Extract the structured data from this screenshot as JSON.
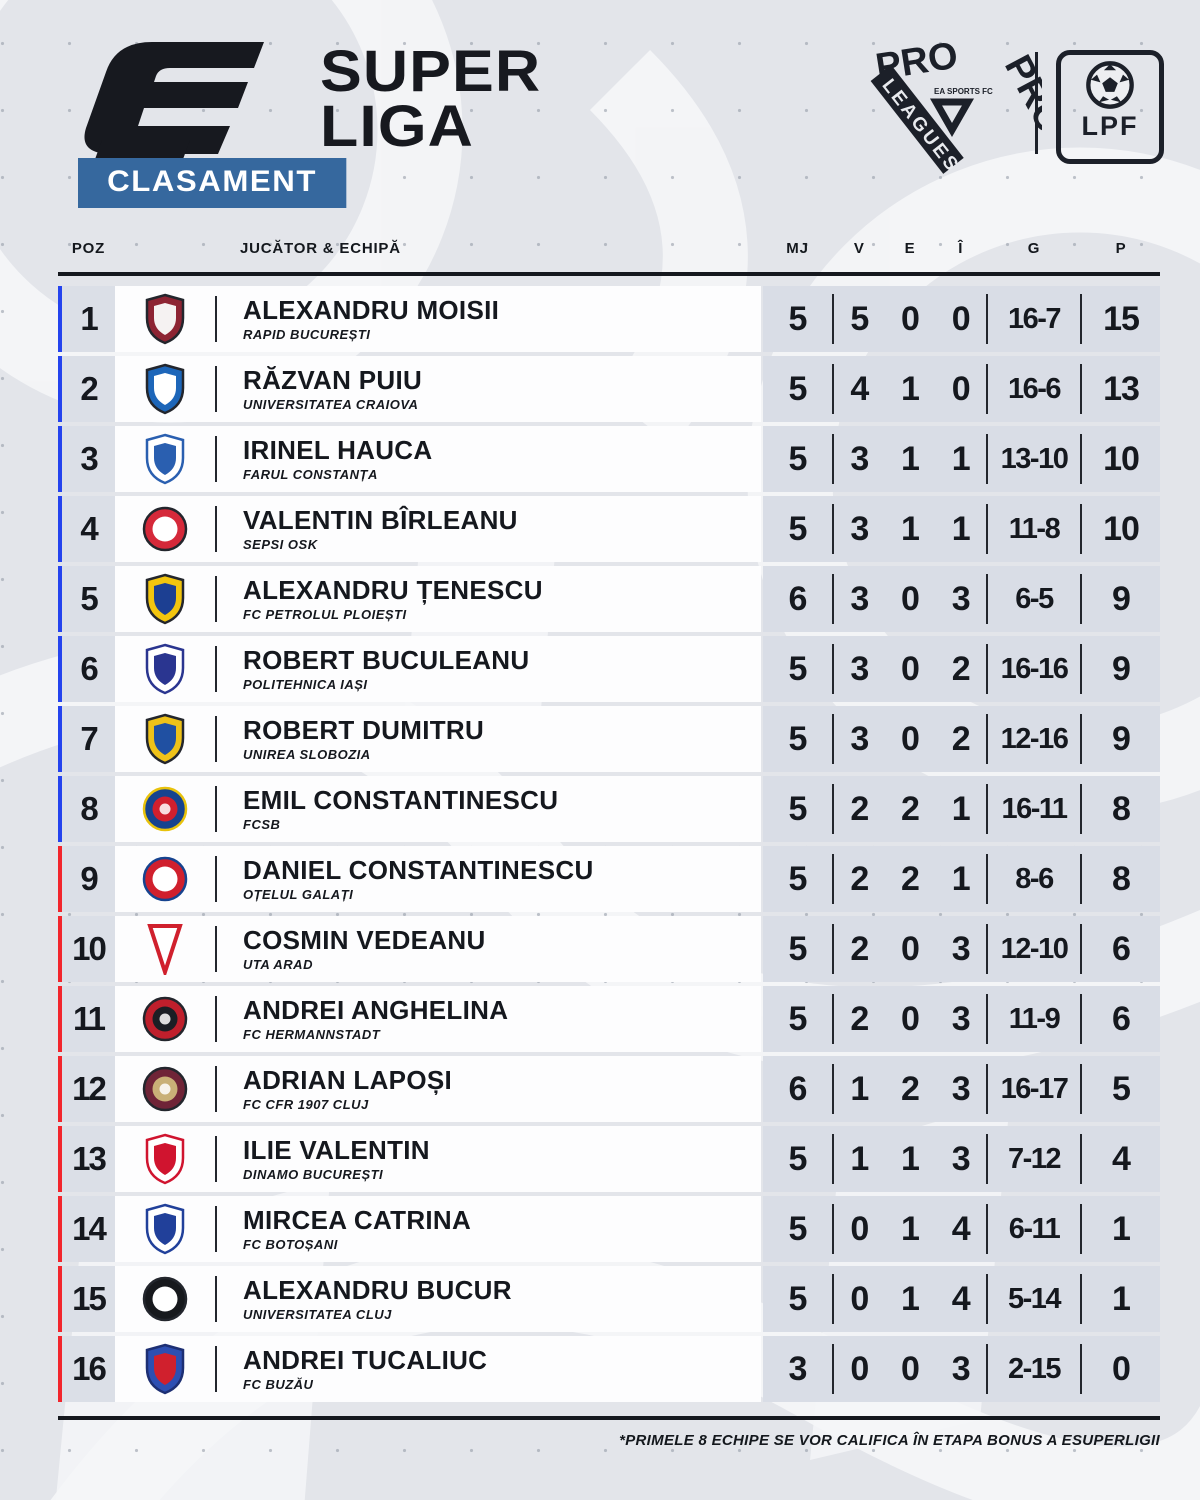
{
  "branding": {
    "title_top": "SUPER",
    "title_bottom": "LIGA",
    "banner": "CLASAMENT",
    "pro_top": "PRO",
    "pro_side": "PRO",
    "pro_band": "LEAGUES",
    "pro_center": "EA SPORTS FC",
    "lpf": "LPF"
  },
  "colors": {
    "background": "#e3e5ea",
    "banner_blue": "#36689e",
    "qualified_bar": "#2443ee",
    "unqualified_bar": "#f2252c",
    "row_white": "#fdfdfe",
    "panel_gray": "#d9dde6",
    "ink": "#15181e"
  },
  "chart_data": {
    "type": "table",
    "title": "CLASAMENT",
    "columns": [
      "POZ",
      "JUCĂTOR & ECHIPĂ",
      "MJ",
      "V",
      "E",
      "Î",
      "G",
      "P"
    ],
    "legend_note": "rows 1-8 blue bar = qualification zone, rows 9-16 red bar",
    "rows": [
      {
        "pos": "1",
        "player": "ALEXANDRU MOISII",
        "team": "RAPID BUCUREȘTI",
        "mj": "5",
        "v": "5",
        "e": "0",
        "i": "0",
        "g": "16-7",
        "p": "15",
        "zone": "blue",
        "crest": {
          "shape": "shield",
          "c1": "#8d2433",
          "c2": "#f5f2f2"
        }
      },
      {
        "pos": "2",
        "player": "RĂZVAN PUIU",
        "team": "UNIVERSITATEA CRAIOVA",
        "mj": "5",
        "v": "4",
        "e": "1",
        "i": "0",
        "g": "16-6",
        "p": "13",
        "zone": "blue",
        "crest": {
          "shape": "shield",
          "c1": "#1d66b9",
          "c2": "#ffffff"
        }
      },
      {
        "pos": "3",
        "player": "IRINEL HAUCA",
        "team": "FARUL CONSTANȚA",
        "mj": "5",
        "v": "3",
        "e": "1",
        "i": "1",
        "g": "13-10",
        "p": "10",
        "zone": "blue",
        "crest": {
          "shape": "shield",
          "c1": "#ffffff",
          "c2": "#2a5fb0",
          "stroke": "#2a5fb0"
        }
      },
      {
        "pos": "4",
        "player": "VALENTIN BÎRLEANU",
        "team": "SEPSI OSK",
        "mj": "5",
        "v": "3",
        "e": "1",
        "i": "1",
        "g": "11-8",
        "p": "10",
        "zone": "blue",
        "crest": {
          "shape": "circle",
          "c1": "#d5293a",
          "c2": "#ffffff"
        }
      },
      {
        "pos": "5",
        "player": "ALEXANDRU ȚENESCU",
        "team": "FC PETROLUL PLOIEȘTI",
        "mj": "6",
        "v": "3",
        "e": "0",
        "i": "3",
        "g": "6-5",
        "p": "9",
        "zone": "blue",
        "crest": {
          "shape": "shield",
          "c1": "#f2c50e",
          "c2": "#1c3f92"
        }
      },
      {
        "pos": "6",
        "player": "ROBERT BUCULEANU",
        "team": "POLITEHNICA IAȘI",
        "mj": "5",
        "v": "3",
        "e": "0",
        "i": "2",
        "g": "16-16",
        "p": "9",
        "zone": "blue",
        "crest": {
          "shape": "shield",
          "c1": "#ffffff",
          "c2": "#2a3590",
          "stroke": "#2a3590"
        }
      },
      {
        "pos": "7",
        "player": "ROBERT DUMITRU",
        "team": "UNIREA SLOBOZIA",
        "mj": "5",
        "v": "3",
        "e": "0",
        "i": "2",
        "g": "12-16",
        "p": "9",
        "zone": "blue",
        "crest": {
          "shape": "shield",
          "c1": "#efc219",
          "c2": "#2050a2"
        }
      },
      {
        "pos": "8",
        "player": "EMIL CONSTANTINESCU",
        "team": "FCSB",
        "mj": "5",
        "v": "2",
        "e": "2",
        "i": "1",
        "g": "16-11",
        "p": "8",
        "zone": "blue",
        "crest": {
          "shape": "circle",
          "c1": "#16438f",
          "c2": "#d01f2e",
          "stroke": "#e8c20c"
        }
      },
      {
        "pos": "9",
        "player": "DANIEL CONSTANTINESCU",
        "team": "OȚELUL GALAȚI",
        "mj": "5",
        "v": "2",
        "e": "2",
        "i": "1",
        "g": "8-6",
        "p": "8",
        "zone": "red",
        "crest": {
          "shape": "circle",
          "c1": "#d0202d",
          "c2": "#ffffff",
          "stroke": "#16438f"
        }
      },
      {
        "pos": "10",
        "player": "COSMIN VEDEANU",
        "team": "UTA ARAD",
        "mj": "5",
        "v": "2",
        "e": "0",
        "i": "3",
        "g": "12-10",
        "p": "6",
        "zone": "red",
        "crest": {
          "shape": "pennant",
          "c1": "#ffffff",
          "c2": "#d0202d"
        }
      },
      {
        "pos": "11",
        "player": "ANDREI ANGHELINA",
        "team": "FC HERMANNSTADT",
        "mj": "5",
        "v": "2",
        "e": "0",
        "i": "3",
        "g": "11-9",
        "p": "6",
        "zone": "red",
        "crest": {
          "shape": "circle",
          "c1": "#bf1f2c",
          "c2": "#1b1e24"
        }
      },
      {
        "pos": "12",
        "player": "ADRIAN LAPOȘI",
        "team": "FC CFR 1907 CLUJ",
        "mj": "6",
        "v": "1",
        "e": "2",
        "i": "3",
        "g": "16-17",
        "p": "5",
        "zone": "red",
        "crest": {
          "shape": "circle",
          "c1": "#6f2437",
          "c2": "#c9b077"
        }
      },
      {
        "pos": "13",
        "player": "ILIE VALENTIN",
        "team": "DINAMO BUCUREȘTI",
        "mj": "5",
        "v": "1",
        "e": "1",
        "i": "3",
        "g": "7-12",
        "p": "4",
        "zone": "red",
        "crest": {
          "shape": "shield",
          "c1": "#ffffff",
          "c2": "#d0142f",
          "stroke": "#d0142f"
        }
      },
      {
        "pos": "14",
        "player": "MIRCEA CATRINA",
        "team": "FC BOTOȘANI",
        "mj": "5",
        "v": "0",
        "e": "1",
        "i": "4",
        "g": "6-11",
        "p": "1",
        "zone": "red",
        "crest": {
          "shape": "shield",
          "c1": "#ffffff",
          "c2": "#21409a",
          "stroke": "#21409a"
        }
      },
      {
        "pos": "15",
        "player": "ALEXANDRU BUCUR",
        "team": "UNIVERSITATEA CLUJ",
        "mj": "5",
        "v": "0",
        "e": "1",
        "i": "4",
        "g": "5-14",
        "p": "1",
        "zone": "red",
        "crest": {
          "shape": "circle",
          "c1": "#17191d",
          "c2": "#ffffff"
        }
      },
      {
        "pos": "16",
        "player": "ANDREI TUCALIUC",
        "team": "FC BUZĂU",
        "mj": "3",
        "v": "0",
        "e": "0",
        "i": "3",
        "g": "2-15",
        "p": "0",
        "zone": "red",
        "crest": {
          "shape": "shield",
          "c1": "#2d4fb2",
          "c2": "#d0202d",
          "stroke": "#1d2f73"
        }
      }
    ]
  },
  "table_headers": {
    "poz": "POZ",
    "player": "JUCĂTOR & ECHIPĂ",
    "mj": "MJ",
    "v": "V",
    "e": "E",
    "i": "Î",
    "g": "G",
    "p": "P"
  },
  "footnote": "*PRIMELE 8 ECHIPE SE VOR CALIFICA ÎN ETAPA BONUS A ESUPERLIGII"
}
